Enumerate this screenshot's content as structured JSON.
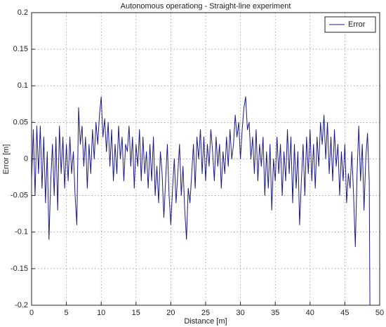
{
  "chart_data": {
    "type": "line",
    "title": "Autonomous operationg - Straight-line experiment",
    "x_label": "Distance [m]",
    "y_label": "Error [m]",
    "legend": "upper right",
    "grid": true,
    "xlim": [
      0,
      50
    ],
    "ylim": [
      -0.2,
      0.2
    ],
    "xticks": [
      0,
      5,
      10,
      15,
      20,
      25,
      30,
      35,
      40,
      45,
      50
    ],
    "yticks": [
      -0.2,
      -0.15,
      -0.1,
      -0.05,
      0,
      0.05,
      0.1,
      0.15,
      0.2
    ],
    "x": [
      0,
      0.25,
      0.5,
      0.75,
      1,
      1.25,
      1.5,
      1.75,
      2,
      2.25,
      2.5,
      2.75,
      3,
      3.25,
      3.5,
      3.75,
      4,
      4.25,
      4.5,
      4.75,
      5,
      5.25,
      5.5,
      5.75,
      6,
      6.25,
      6.5,
      6.75,
      7,
      7.25,
      7.5,
      7.75,
      8,
      8.25,
      8.5,
      8.75,
      9,
      9.25,
      9.5,
      9.75,
      10,
      10.25,
      10.5,
      10.75,
      11,
      11.25,
      11.5,
      11.75,
      12,
      12.25,
      12.5,
      12.75,
      13,
      13.25,
      13.5,
      13.75,
      14,
      14.25,
      14.5,
      14.75,
      15,
      15.25,
      15.5,
      15.75,
      16,
      16.25,
      16.5,
      16.75,
      17,
      17.25,
      17.5,
      17.75,
      18,
      18.25,
      18.5,
      18.75,
      19,
      19.25,
      19.5,
      19.75,
      20,
      20.25,
      20.5,
      20.75,
      21,
      21.25,
      21.5,
      21.75,
      22,
      22.25,
      22.5,
      22.75,
      23,
      23.25,
      23.5,
      23.75,
      24,
      24.25,
      24.5,
      24.75,
      25,
      25.25,
      25.5,
      25.75,
      26,
      26.25,
      26.5,
      26.75,
      27,
      27.25,
      27.5,
      27.75,
      28,
      28.25,
      28.5,
      28.75,
      29,
      29.25,
      29.5,
      29.75,
      30,
      30.25,
      30.5,
      30.75,
      31,
      31.25,
      31.5,
      31.75,
      32,
      32.25,
      32.5,
      32.75,
      33,
      33.25,
      33.5,
      33.75,
      34,
      34.25,
      34.5,
      34.75,
      35,
      35.25,
      35.5,
      35.75,
      36,
      36.25,
      36.5,
      36.75,
      37,
      37.25,
      37.5,
      37.75,
      38,
      38.25,
      38.5,
      38.75,
      39,
      39.25,
      39.5,
      39.75,
      40,
      40.25,
      40.5,
      40.75,
      41,
      41.25,
      41.5,
      41.75,
      42,
      42.25,
      42.5,
      42.75,
      43,
      43.25,
      43.5,
      43.75,
      44,
      44.25,
      44.5,
      44.75,
      45,
      45.25,
      45.5,
      45.75,
      46,
      46.25,
      46.5,
      46.75,
      47,
      47.25,
      47.5,
      47.75,
      48,
      48.25,
      48.5,
      48.6
    ],
    "series": [
      {
        "name": "Error",
        "color": "#1a1a8c",
        "values": [
          -0.03,
          0.04,
          -0.05,
          0.045,
          -0.02,
          0.045,
          -0.04,
          0.03,
          -0.06,
          0.01,
          -0.11,
          -0.03,
          0.02,
          -0.05,
          0.03,
          -0.07,
          0.045,
          -0.02,
          0.03,
          -0.04,
          0.02,
          -0.03,
          0.03,
          -0.02,
          0.01,
          -0.05,
          -0.09,
          0.07,
          0.02,
          0.045,
          -0.01,
          0.03,
          -0.04,
          0.02,
          -0.02,
          0.04,
          0.0,
          0.05,
          0.02,
          0.06,
          0.085,
          0.03,
          0.055,
          0.01,
          0.05,
          -0.01,
          0.04,
          -0.03,
          0.02,
          -0.02,
          0.045,
          0.0,
          0.03,
          -0.03,
          0.02,
          0.01,
          0.045,
          -0.01,
          0.03,
          -0.04,
          0.02,
          -0.01,
          0.04,
          -0.03,
          0.03,
          -0.02,
          0.01,
          -0.04,
          0.02,
          -0.03,
          0.03,
          -0.05,
          -0.01,
          -0.06,
          0.01,
          -0.02,
          -0.08,
          -0.03,
          0.02,
          -0.05,
          -0.09,
          -0.04,
          0.0,
          -0.06,
          -0.02,
          0.02,
          -0.05,
          -0.01,
          -0.07,
          -0.11,
          -0.04,
          -0.06,
          -0.02,
          0.02,
          -0.04,
          0.03,
          0.0,
          0.04,
          -0.02,
          0.03,
          -0.03,
          0.02,
          -0.01,
          0.04,
          0.01,
          -0.03,
          0.03,
          -0.01,
          0.02,
          -0.04,
          0.01,
          -0.02,
          0.03,
          -0.01,
          0.04,
          0.0,
          0.02,
          0.06,
          0.03,
          0.05,
          0.0,
          0.04,
          0.07,
          0.085,
          0.04,
          0.05,
          0.0,
          0.03,
          -0.02,
          0.04,
          -0.03,
          0.02,
          -0.01,
          0.03,
          -0.05,
          0.01,
          -0.04,
          0.02,
          -0.07,
          0.0,
          -0.03,
          0.03,
          -0.02,
          0.02,
          -0.05,
          0.01,
          -0.03,
          0.04,
          -0.02,
          0.03,
          -0.06,
          0.02,
          -0.04,
          0.01,
          -0.09,
          -0.03,
          0.02,
          -0.05,
          0.03,
          -0.02,
          0.04,
          -0.03,
          0.02,
          -0.04,
          0.03,
          -0.01,
          0.05,
          0.02,
          0.06,
          0.0,
          0.05,
          -0.02,
          0.03,
          -0.03,
          0.04,
          -0.01,
          0.02,
          -0.05,
          0.01,
          -0.03,
          0.02,
          -0.06,
          -0.02,
          -0.04,
          0.01,
          -0.05,
          -0.12,
          -0.02,
          0.045,
          -0.03,
          0.02,
          -0.07,
          0.0,
          0.035,
          -0.03,
          -0.2
        ]
      }
    ]
  }
}
